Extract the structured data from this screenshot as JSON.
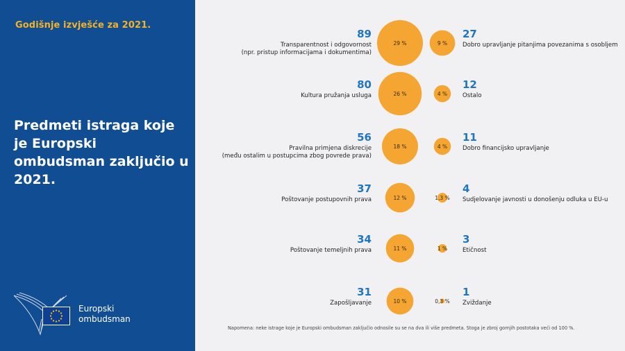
{
  "header": {
    "report_year": "Godišnje izvješće za 2021."
  },
  "title": {
    "text": "Predmeti istraga koje je Europski ombudsman zaključio u 2021."
  },
  "logo": {
    "line1": "Europski",
    "line2": "ombudsman"
  },
  "note": "Napomena: neke istrage koje je Europski ombudsman zaključio odnosile su se na dva ili više predmeta. Stoga je zbroj gornjih postotaka veći od 100 %.",
  "colors": {
    "sidebar": "#114d93",
    "bubble": "#f5a532",
    "accent": "#f3b324",
    "count": "#1f76bf",
    "background": "#f1f1f3"
  },
  "chart_data": {
    "type": "bubble",
    "title": "Predmeti istraga koje je Europski ombudsman zaključio u 2021.",
    "left_column": [
      {
        "count": "89",
        "pct_label": "29 %",
        "pct": 29,
        "label": "Transparentnost i odgovornost\n(npr. pristup informacijama i dokumentima)"
      },
      {
        "count": "80",
        "pct_label": "26 %",
        "pct": 26,
        "label": "Kultura pružanja usluga"
      },
      {
        "count": "56",
        "pct_label": "18 %",
        "pct": 18,
        "label": "Pravilna primjena diskrecije\n(među ostalim u postupcima zbog povrede prava)"
      },
      {
        "count": "37",
        "pct_label": "12 %",
        "pct": 12,
        "label": "Poštovanje postupovnih prava"
      },
      {
        "count": "34",
        "pct_label": "11 %",
        "pct": 11,
        "label": "Poštovanje temeljnih prava"
      },
      {
        "count": "31",
        "pct_label": "10 %",
        "pct": 10,
        "label": "Zapošljavanje"
      }
    ],
    "right_column": [
      {
        "count": "27",
        "pct_label": "9 %",
        "pct": 9,
        "label": "Dobro upravljanje pitanjima povezanima s osobljem"
      },
      {
        "count": "12",
        "pct_label": "4 %",
        "pct": 4,
        "label": "Ostalo"
      },
      {
        "count": "11",
        "pct_label": "4 %",
        "pct": 4,
        "label": "Dobro financijsko upravljanje"
      },
      {
        "count": "4",
        "pct_label": "1,3 %",
        "pct": 1.3,
        "label": "Sudjelovanje javnosti u donošenju odluka u EU-u"
      },
      {
        "count": "3",
        "pct_label": "1 %",
        "pct": 1,
        "label": "Etičnost"
      },
      {
        "count": "1",
        "pct_label": "0,3 %",
        "pct": 0.3,
        "label": "Zviždanje"
      }
    ]
  }
}
